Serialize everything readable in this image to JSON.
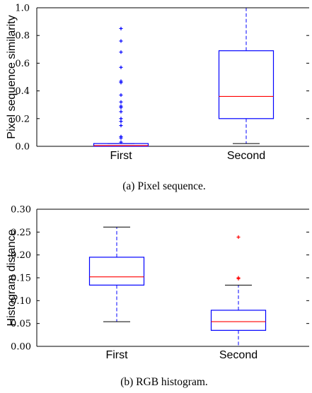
{
  "chart_data": [
    {
      "type": "boxplot",
      "caption": "(a) Pixel sequence.",
      "ylabel": "Pixel sequence similarity",
      "ylim": [
        0,
        1.0
      ],
      "yticks": [
        "0.0",
        "0.2",
        "0.4",
        "0.6",
        "0.8",
        "1.0"
      ],
      "categories": [
        "First",
        "Second"
      ],
      "series": [
        {
          "category": "First",
          "whisker_low": 0.0,
          "q1": 0.0,
          "median": 0.005,
          "q3": 0.02,
          "whisker_high": 0.02,
          "outliers": [
            0.85,
            0.76,
            0.68,
            0.57,
            0.47,
            0.46,
            0.37,
            0.32,
            0.29,
            0.28,
            0.25,
            0.2,
            0.18,
            0.15,
            0.07,
            0.06,
            0.03
          ]
        },
        {
          "category": "Second",
          "whisker_low": 0.02,
          "q1": 0.2,
          "median": 0.36,
          "q3": 0.69,
          "whisker_high": 1.0,
          "outliers": []
        }
      ],
      "colors": {
        "box": "#0000ff",
        "median": "#ff0000",
        "outlier": "#0000ff",
        "whisker_cap": "#000000"
      }
    },
    {
      "type": "boxplot",
      "caption": "(b) RGB histogram.",
      "ylabel": "Histogram distance",
      "ylim": [
        0,
        0.3
      ],
      "yticks": [
        "0.00",
        "0.05",
        "0.10",
        "0.15",
        "0.20",
        "0.25",
        "0.30"
      ],
      "categories": [
        "First",
        "Second"
      ],
      "series": [
        {
          "category": "First",
          "whisker_low": 0.054,
          "q1": 0.134,
          "median": 0.152,
          "q3": 0.195,
          "whisker_high": 0.261,
          "outliers": []
        },
        {
          "category": "Second",
          "whisker_low": 0.0,
          "q1": 0.035,
          "median": 0.054,
          "q3": 0.079,
          "whisker_high": 0.134,
          "outliers": [
            0.239,
            0.15,
            0.148
          ]
        }
      ],
      "colors": {
        "box": "#0000ff",
        "median": "#ff0000",
        "outlier": "#ff0000",
        "whisker_cap": "#000000"
      }
    }
  ]
}
